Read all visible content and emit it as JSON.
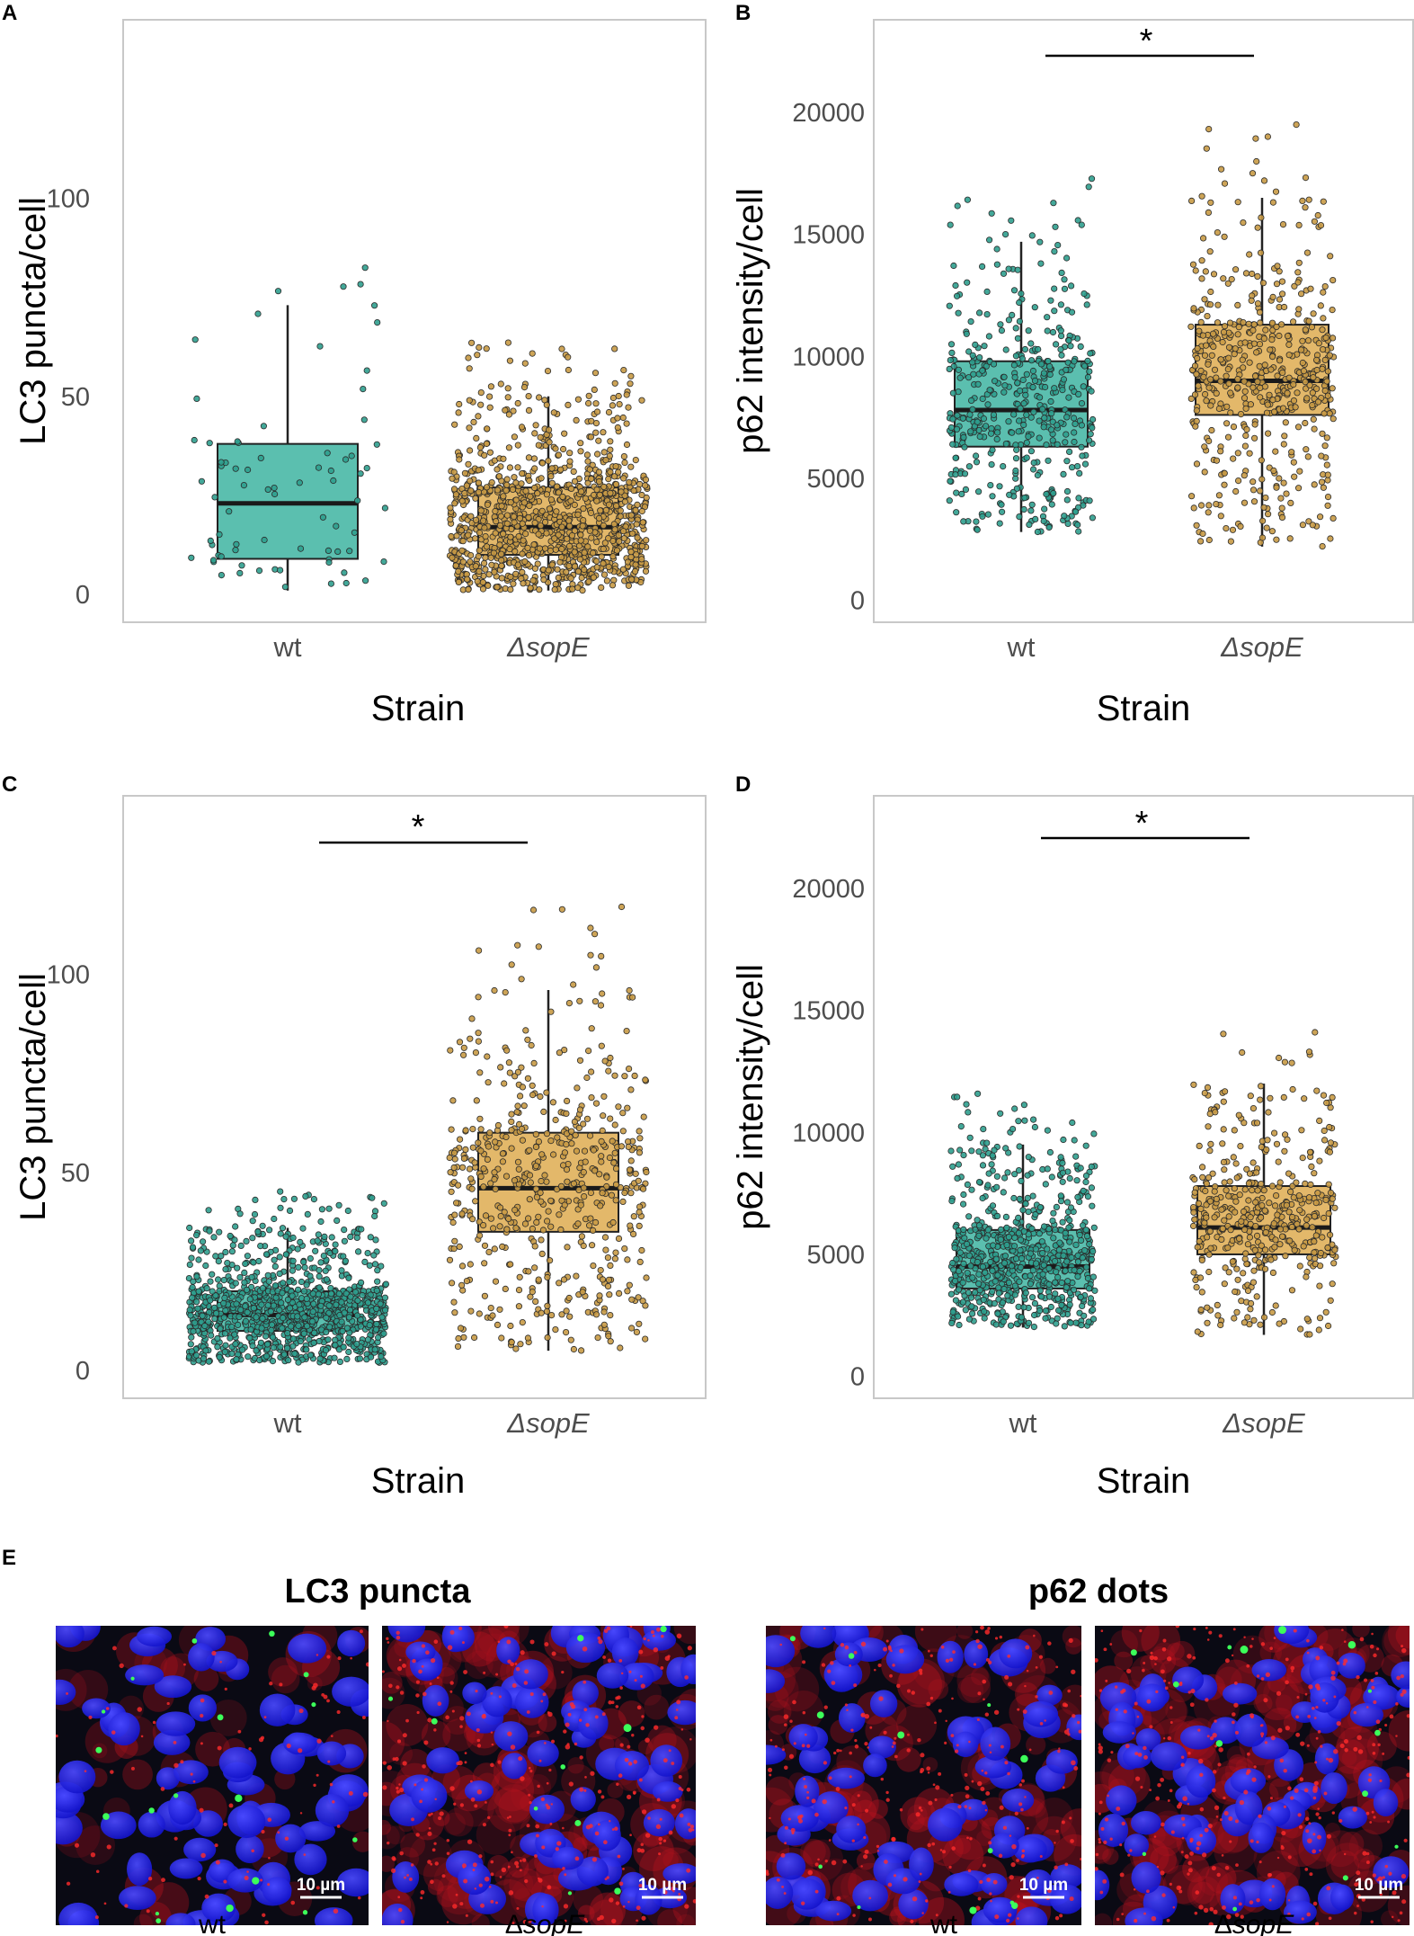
{
  "colors": {
    "wt": "#5bbfaf",
    "wt_point": "#2f9e8e",
    "sopE": "#e3b86a",
    "sopE_point": "#c89a45",
    "frame": "#c8c8c8",
    "median": "#1a1a1a"
  },
  "chart_data": [
    {
      "type": "box",
      "panel": "A",
      "xlabel": "Strain",
      "ylabel": "LC3 puncta/cell",
      "ylim": [
        -7,
        145
      ],
      "yticks": [
        0,
        50,
        100
      ],
      "categories": [
        "wt",
        "ΔsopE"
      ],
      "boxes": [
        {
          "name": "wt",
          "q1": 9,
          "median": 23,
          "q3": 38,
          "whisker_low": 1,
          "whisker_high": 73,
          "n_points": 75
        },
        {
          "name": "ΔsopE",
          "q1": 10,
          "median": 17,
          "q3": 27,
          "whisker_low": 1,
          "whisker_high": 50,
          "n_points": 1100
        }
      ],
      "significance": null
    },
    {
      "type": "box",
      "panel": "B",
      "xlabel": "Strain",
      "ylabel": "p62 intensity/cell",
      "ylim": [
        -900,
        23800
      ],
      "yticks": [
        0,
        5000,
        10000,
        15000,
        20000
      ],
      "categories": [
        "wt",
        "ΔsopE"
      ],
      "boxes": [
        {
          "name": "wt",
          "q1": 6300,
          "median": 7800,
          "q3": 9800,
          "whisker_low": 2800,
          "whisker_high": 14700,
          "n_points": 450
        },
        {
          "name": "ΔsopE",
          "q1": 7600,
          "median": 9000,
          "q3": 11300,
          "whisker_low": 2200,
          "whisker_high": 16500,
          "n_points": 520
        }
      ],
      "significance": "*"
    },
    {
      "type": "box",
      "panel": "C",
      "xlabel": "Strain",
      "ylabel": "LC3 puncta/cell",
      "ylim": [
        -7,
        145
      ],
      "yticks": [
        0,
        50,
        100
      ],
      "categories": [
        "wt",
        "ΔsopE"
      ],
      "boxes": [
        {
          "name": "wt",
          "q1": 10,
          "median": 14,
          "q3": 20,
          "whisker_low": 2,
          "whisker_high": 36,
          "n_points": 1100
        },
        {
          "name": "ΔsopE",
          "q1": 35,
          "median": 46,
          "q3": 60,
          "whisker_low": 5,
          "whisker_high": 96,
          "n_points": 560
        }
      ],
      "significance": "*"
    },
    {
      "type": "box",
      "panel": "D",
      "xlabel": "Strain",
      "ylabel": "p62 intensity/cell",
      "ylim": [
        -900,
        23800
      ],
      "yticks": [
        0,
        5000,
        10000,
        15000,
        20000
      ],
      "categories": [
        "wt",
        "ΔsopE"
      ],
      "boxes": [
        {
          "name": "wt",
          "q1": 3600,
          "median": 4500,
          "q3": 6000,
          "whisker_low": 2000,
          "whisker_high": 9500,
          "n_points": 700
        },
        {
          "name": "ΔsopE",
          "q1": 5000,
          "median": 6100,
          "q3": 7800,
          "whisker_low": 1700,
          "whisker_high": 12000,
          "n_points": 450
        }
      ],
      "significance": "*"
    }
  ],
  "panel_e": {
    "letter": "E",
    "groups": [
      {
        "title": "LC3 puncta",
        "images": [
          {
            "caption": "wt",
            "scale_bar": "10 µm"
          },
          {
            "caption_prefix": "Δ",
            "caption_italic": "sopE",
            "scale_bar": "10 µm"
          }
        ]
      },
      {
        "title": "p62 dots",
        "images": [
          {
            "caption": "wt",
            "scale_bar": "10 µm"
          },
          {
            "caption_prefix": "Δ",
            "caption_italic": "sopE",
            "scale_bar": "10 µm"
          }
        ]
      }
    ]
  }
}
